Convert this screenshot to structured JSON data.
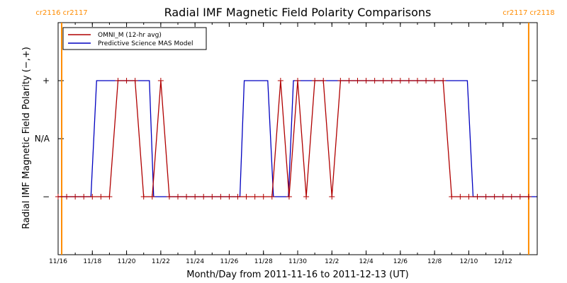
{
  "chart_data": {
    "type": "line",
    "title": "Radial IMF Magnetic Field Polarity Comparisons",
    "xlabel": "Month/Day from 2011-11-16 to 2011-12-13 (UT)",
    "ylabel": "Radial IMF Magnetic Field Polarity (−,+)",
    "xlim": [
      "2011-11-16",
      "2011-12-14"
    ],
    "ylim": [
      -2,
      2
    ],
    "yticks": [
      {
        "value": -1,
        "label": "−"
      },
      {
        "value": 0,
        "label": "N/A"
      },
      {
        "value": 1,
        "label": "+"
      }
    ],
    "xticks": [
      {
        "date": "2011-11-16",
        "label": "11/16"
      },
      {
        "date": "2011-11-18",
        "label": "11/18"
      },
      {
        "date": "2011-11-20",
        "label": "11/20"
      },
      {
        "date": "2011-11-22",
        "label": "11/22"
      },
      {
        "date": "2011-11-24",
        "label": "11/24"
      },
      {
        "date": "2011-11-26",
        "label": "11/26"
      },
      {
        "date": "2011-11-28",
        "label": "11/28"
      },
      {
        "date": "2011-11-30",
        "label": "11/30"
      },
      {
        "date": "2011-12-02",
        "label": "12/2"
      },
      {
        "date": "2011-12-04",
        "label": "12/4"
      },
      {
        "date": "2011-12-06",
        "label": "12/6"
      },
      {
        "date": "2011-12-08",
        "label": "12/8"
      },
      {
        "date": "2011-12-10",
        "label": "12/10"
      },
      {
        "date": "2011-12-12",
        "label": "12/12"
      }
    ],
    "rotation_markers": [
      {
        "date": "2011-11-16 05:00",
        "label": "cr2116 cr2117",
        "color": "#ff8c00"
      },
      {
        "date": "2011-12-13 12:00",
        "label": "cr2117 cr2118",
        "color": "#ff8c00"
      }
    ],
    "legend": {
      "position": "top-left"
    },
    "series": [
      {
        "name": "OMNI_M (12-hr avg)",
        "color": "#b00000",
        "marker": "plus",
        "x": [
          "2011-11-16 00:00",
          "2011-11-16 12:00",
          "2011-11-17 00:00",
          "2011-11-17 12:00",
          "2011-11-18 00:00",
          "2011-11-18 12:00",
          "2011-11-19 00:00",
          "2011-11-19 12:00",
          "2011-11-20 00:00",
          "2011-11-20 12:00",
          "2011-11-21 00:00",
          "2011-11-21 12:00",
          "2011-11-22 00:00",
          "2011-11-22 12:00",
          "2011-11-23 00:00",
          "2011-11-23 12:00",
          "2011-11-24 00:00",
          "2011-11-24 12:00",
          "2011-11-25 00:00",
          "2011-11-25 12:00",
          "2011-11-26 00:00",
          "2011-11-26 12:00",
          "2011-11-27 00:00",
          "2011-11-27 12:00",
          "2011-11-28 00:00",
          "2011-11-28 12:00",
          "2011-11-29 00:00",
          "2011-11-29 12:00",
          "2011-11-30 00:00",
          "2011-11-30 12:00",
          "2011-12-01 00:00",
          "2011-12-01 12:00",
          "2011-12-02 00:00",
          "2011-12-02 12:00",
          "2011-12-03 00:00",
          "2011-12-03 12:00",
          "2011-12-04 00:00",
          "2011-12-04 12:00",
          "2011-12-05 00:00",
          "2011-12-05 12:00",
          "2011-12-06 00:00",
          "2011-12-06 12:00",
          "2011-12-07 00:00",
          "2011-12-07 12:00",
          "2011-12-08 00:00",
          "2011-12-08 12:00",
          "2011-12-09 00:00",
          "2011-12-09 12:00",
          "2011-12-10 00:00",
          "2011-12-10 12:00",
          "2011-12-11 00:00",
          "2011-12-11 12:00",
          "2011-12-12 00:00",
          "2011-12-12 12:00",
          "2011-12-13 00:00",
          "2011-12-13 12:00"
        ],
        "y": [
          -1,
          -1,
          -1,
          -1,
          -1,
          -1,
          -1,
          1,
          1,
          1,
          -1,
          -1,
          1,
          -1,
          -1,
          -1,
          -1,
          -1,
          -1,
          -1,
          -1,
          -1,
          -1,
          -1,
          -1,
          -1,
          1,
          -1,
          1,
          -1,
          1,
          1,
          -1,
          1,
          1,
          1,
          1,
          1,
          1,
          1,
          1,
          1,
          1,
          1,
          1,
          1,
          -1,
          -1,
          -1,
          -1,
          -1,
          -1,
          -1,
          -1,
          -1,
          -1
        ]
      },
      {
        "name": "Predictive Science MAS Model",
        "color": "#0000c0",
        "marker": "none",
        "x": [
          "2011-11-16 00:00",
          "2011-11-17 22:00",
          "2011-11-18 06:00",
          "2011-11-21 08:00",
          "2011-11-21 14:00",
          "2011-11-26 15:00",
          "2011-11-26 21:00",
          "2011-11-28 06:00",
          "2011-11-28 14:00",
          "2011-11-29 11:00",
          "2011-11-29 18:00",
          "2011-12-09 22:00",
          "2011-12-10 06:00",
          "2011-12-13 23:00"
        ],
        "y": [
          -1,
          -1,
          1,
          1,
          -1,
          -1,
          1,
          1,
          -1,
          -1,
          1,
          1,
          -1,
          -1
        ]
      }
    ]
  }
}
